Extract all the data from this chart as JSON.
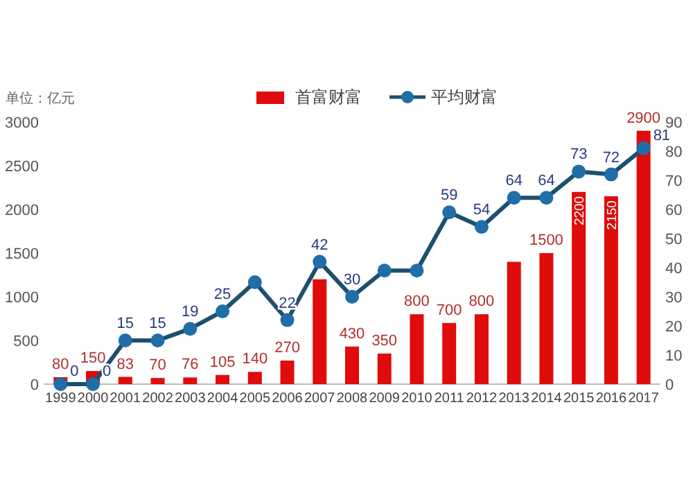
{
  "chart_data": {
    "type": "bar",
    "categories": [
      "1999",
      "2000",
      "2001",
      "2002",
      "2003",
      "2004",
      "2005",
      "2006",
      "2007",
      "2008",
      "2009",
      "2010",
      "2011",
      "2012",
      "2013",
      "2014",
      "2015",
      "2016",
      "2017"
    ],
    "series": [
      {
        "name": "首富财富",
        "color": "#e00b0b",
        "values": [
          80,
          150,
          83,
          70,
          76,
          105,
          140,
          270,
          1200,
          430,
          350,
          800,
          700,
          800,
          1400,
          1500,
          2200,
          2150,
          2900
        ],
        "value_labels": [
          "80",
          "150",
          "83",
          "70",
          "76",
          "105",
          "140",
          "270",
          null,
          "430",
          "350",
          "800",
          "700",
          "800",
          null,
          "1500",
          "2200",
          "2150",
          "2900"
        ]
      },
      {
        "name": "平均财富",
        "type": "line",
        "axis": "y2",
        "color": "#1f6ea8",
        "marker": "circle",
        "values": [
          0,
          0,
          15,
          15,
          19,
          25,
          35,
          22,
          42,
          30,
          39,
          39,
          59,
          54,
          64,
          64,
          73,
          72,
          81
        ],
        "value_labels": [
          "0",
          "0",
          "15",
          "15",
          "19",
          "25",
          null,
          "22",
          "42",
          "30",
          null,
          null,
          "59",
          "54",
          "64",
          "64",
          "73",
          "72",
          "81"
        ]
      }
    ],
    "ylim": [
      0,
      3000
    ],
    "yticks": [
      0,
      500,
      1000,
      1500,
      2000,
      2500,
      3000
    ],
    "y2lim": [
      0,
      90
    ],
    "y2ticks": [
      0,
      10,
      20,
      30,
      40,
      50,
      60,
      70,
      80,
      90
    ],
    "legend": "top",
    "grid": false,
    "annotations": [
      "单位：亿元"
    ]
  }
}
